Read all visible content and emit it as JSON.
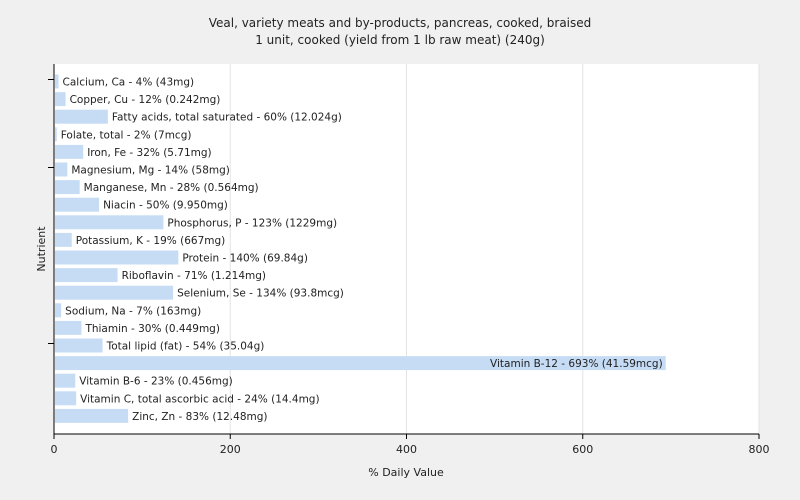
{
  "chart_data": {
    "type": "bar",
    "orientation": "horizontal",
    "title": "Veal, variety meats and by-products, pancreas, cooked, braised",
    "subtitle": "1 unit, cooked (yield from 1 lb raw meat) (240g)",
    "xlabel": "% Daily Value",
    "ylabel": "Nutrient",
    "xlim": [
      0,
      800
    ],
    "xticks": [
      0,
      200,
      400,
      600,
      800
    ],
    "grid": true,
    "bar_color": "#c6dcf5",
    "categories": [
      "Calcium, Ca",
      "Copper, Cu",
      "Fatty acids, total saturated",
      "Folate, total",
      "Iron, Fe",
      "Magnesium, Mg",
      "Manganese, Mn",
      "Niacin",
      "Phosphorus, P",
      "Potassium, K",
      "Protein",
      "Riboflavin",
      "Selenium, Se",
      "Sodium, Na",
      "Thiamin",
      "Total lipid (fat)",
      "Vitamin B-12",
      "Vitamin B-6",
      "Vitamin C, total ascorbic acid",
      "Zinc, Zn"
    ],
    "values": [
      4,
      12,
      60,
      2,
      32,
      14,
      28,
      50,
      123,
      19,
      140,
      71,
      134,
      7,
      30,
      54,
      693,
      23,
      24,
      83
    ],
    "labels": [
      "Calcium, Ca - 4% (43mg)",
      "Copper, Cu - 12% (0.242mg)",
      "Fatty acids, total saturated - 60% (12.024g)",
      "Folate, total - 2% (7mcg)",
      "Iron, Fe - 32% (5.71mg)",
      "Magnesium, Mg - 14% (58mg)",
      "Manganese, Mn - 28% (0.564mg)",
      "Niacin - 50% (9.950mg)",
      "Phosphorus, P - 123% (1229mg)",
      "Potassium, K - 19% (667mg)",
      "Protein - 140% (69.84g)",
      "Riboflavin - 71% (1.214mg)",
      "Selenium, Se - 134% (93.8mcg)",
      "Sodium, Na - 7% (163mg)",
      "Thiamin - 30% (0.449mg)",
      "Total lipid (fat) - 54% (35.04g)",
      "Vitamin B-12 - 693% (41.59mcg)",
      "Vitamin B-6 - 23% (0.456mg)",
      "Vitamin C, total ascorbic acid - 24% (14.4mg)",
      "Zinc, Zn - 83% (12.48mg)"
    ]
  }
}
